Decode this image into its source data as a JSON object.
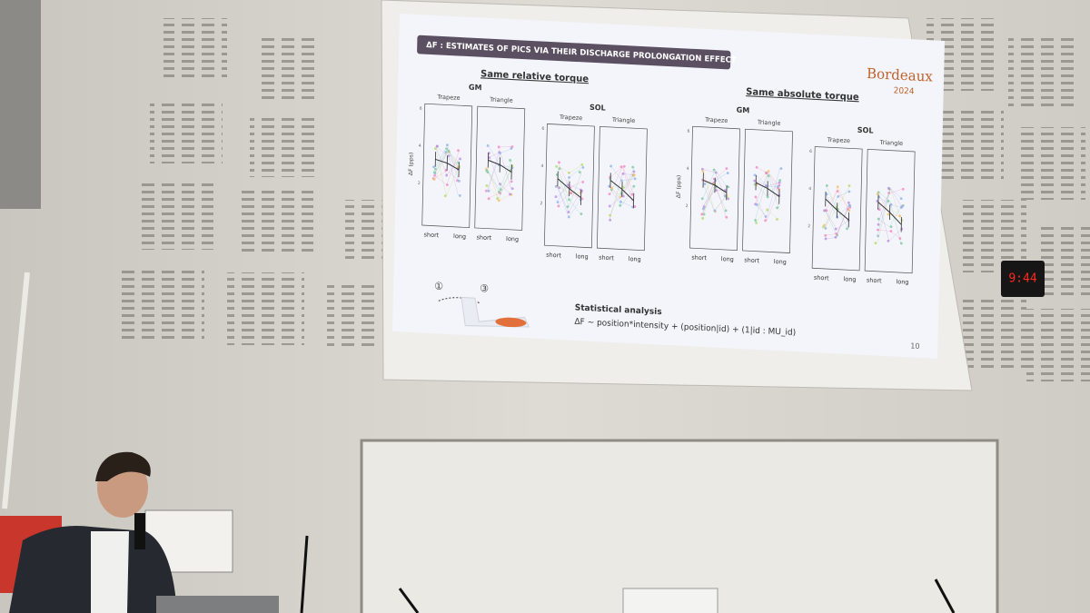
{
  "slide": {
    "title": "ΔF : ESTIMATES OF PICS VIA THEIR DISCHARGE PROLONGATION EFFECT",
    "groups": [
      {
        "heading": "Same relative torque",
        "muscles": [
          {
            "name": "GM",
            "conditions": [
              "Trapeze",
              "Triangle"
            ]
          },
          {
            "name": "SOL",
            "conditions": [
              "Trapeze",
              "Triangle"
            ]
          }
        ]
      },
      {
        "heading": "Same absolute torque",
        "muscles": [
          {
            "name": "GM",
            "conditions": [
              "Trapeze",
              "Triangle"
            ]
          },
          {
            "name": "SOL",
            "conditions": [
              "Trapeze",
              "Triangle"
            ]
          }
        ]
      }
    ],
    "x_labels": [
      "short",
      "long"
    ],
    "y_label": "ΔF (pps)",
    "y_ticks": [
      6,
      4,
      2
    ],
    "steps": [
      "①",
      "③"
    ],
    "stats_title": "Statistical analysis",
    "stats_formula": "ΔF ~ position*intensity + (position|id) + (1|id : MU_id)",
    "page_number": "10",
    "logo": {
      "name": "Bordeaux",
      "year": "2024"
    }
  },
  "clock": "9:44"
}
